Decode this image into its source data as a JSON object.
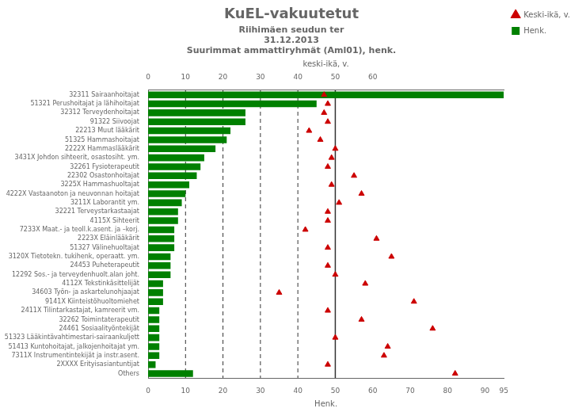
{
  "chart_data": {
    "type": "bar",
    "orientation": "horizontal",
    "title": "KuEL-vakuutetut",
    "subtitle": [
      "Riihimäen seudun ter",
      "31.12.2013",
      "Suurimmat ammattiryhmät (Aml01), henk."
    ],
    "categories": [
      "32311 Sairaanhoitajat",
      "51321 Perushoitajat ja lähihoitajat",
      "32312 Terveydenhoitajat",
      "91322 Siivoojat",
      "22213 Muut lääkärit",
      "51325 Hammashoitajat",
      "2222X Hammaslääkärit",
      "3431X Johdon sihteerit, osastosiht. ym.",
      "32261 Fysioterapeutit",
      "22302 Osastonhoitajat",
      "3225X Hammashuoltajat",
      "4222X Vastaanoton ja neuvonnan hoitajat",
      "3211X Laborantit ym.",
      "32221 Terveystarkastaajat",
      "4115X Sihteerit",
      "7233X Maat.- ja teoll.k.asent. ja –korj.",
      "2223X Eläinlääkärit",
      "51327 Välinehuoltajat",
      "3120X Tietotekn. tukihenk, operaatt. ym.",
      "24453 Puheterapeutit",
      "12292 Sos.- ja terveydenhuolt.alan joht.",
      "4112X Tekstinkäsittelijät",
      "34603 Työn- ja askartelunohjaajat",
      "9141X Kiinteistöhuoltomiehet",
      "2411X Tilintarkastajat, kamreerit vm.",
      "32262 Toimintaterapeutit",
      "24461 Sosiaalityöntekijät",
      "51323 Lääkintävahtimestari-sairaankuljett",
      "51413 Kuntohoitajat, jalkojenhoitajat ym.",
      "7311X Instrumentintekijät ja instr.asent.",
      "2XXXX Erityisasiantuntijat",
      "Others"
    ],
    "series": [
      {
        "name": "Henk.",
        "type": "bar",
        "color": "#008000",
        "values": [
          95,
          45,
          26,
          26,
          22,
          21,
          18,
          15,
          14,
          13,
          11,
          10,
          9,
          8,
          8,
          7,
          7,
          7,
          6,
          6,
          6,
          4,
          4,
          4,
          3,
          3,
          3,
          3,
          3,
          3,
          2,
          12
        ]
      },
      {
        "name": "Keski-ikä, v.",
        "type": "scatter",
        "marker": "triangle",
        "color": "#cc0000",
        "axis": "x2",
        "values": [
          47,
          48,
          47,
          48,
          43,
          46,
          50,
          49,
          48,
          55,
          49,
          57,
          51,
          48,
          48,
          42,
          61,
          48,
          65,
          48,
          50,
          58,
          35,
          71,
          48,
          57,
          76,
          50,
          64,
          63,
          48,
          82
        ]
      }
    ],
    "xlabel": "Henk.",
    "x2label": "keski-ikä, v.",
    "xlim": [
      0,
      95
    ],
    "xticks": [
      0,
      10,
      20,
      30,
      40,
      50,
      60,
      70,
      80,
      90,
      95
    ],
    "x2lim": [
      0,
      95
    ],
    "x2ticks": [
      0,
      10,
      20,
      30,
      40,
      50,
      60
    ],
    "vlines": [
      {
        "value": 10,
        "line_style": "dashed"
      },
      {
        "value": 20,
        "line_style": "dashed"
      },
      {
        "value": 30,
        "line_style": "dashed"
      },
      {
        "value": 40,
        "line_style": "dashed"
      },
      {
        "value": 50,
        "line_style": "solid"
      }
    ],
    "grid": false,
    "legend": "right"
  }
}
